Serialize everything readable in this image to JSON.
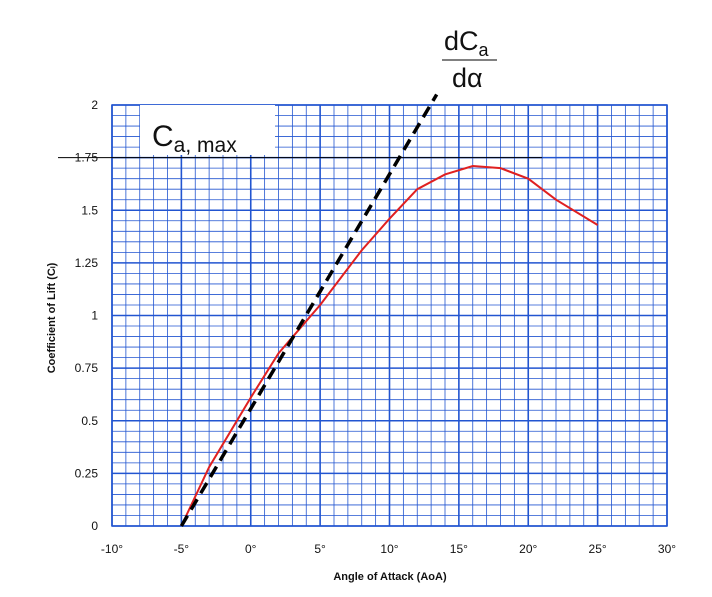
{
  "chart_data": {
    "type": "line",
    "xlabel": "Angle of Attack (AoA)",
    "ylabel": "Coefficient of Lift (Cₗ)",
    "xlim": [
      -10,
      30
    ],
    "ylim": [
      0,
      2
    ],
    "x_ticks": [
      "-10°",
      "-5°",
      "0°",
      "5°",
      "10°",
      "15°",
      "20°",
      "25°",
      "30°"
    ],
    "y_ticks": [
      "0",
      "0.25",
      "0.5",
      "0.75",
      "1",
      "1.25",
      "1.5",
      "1.75",
      "2"
    ],
    "grid": "on (minor 1° x 0.05)",
    "colors": {
      "grid": "#2255d0",
      "curve": "#e02020",
      "slope_line": "#000000",
      "ref_line": "#000000"
    },
    "series": [
      {
        "style": "solid red",
        "points": [
          [
            -5,
            0
          ],
          [
            -3,
            0.28
          ],
          [
            0,
            0.61
          ],
          [
            2,
            0.82
          ],
          [
            5,
            1.05
          ],
          [
            8,
            1.31
          ],
          [
            10,
            1.46
          ],
          [
            12,
            1.6
          ],
          [
            14,
            1.67
          ],
          [
            16,
            1.71
          ],
          [
            18,
            1.7
          ],
          [
            20,
            1.65
          ],
          [
            22,
            1.55
          ],
          [
            25,
            1.43
          ]
        ]
      },
      {
        "style": "dashed black (lift slope)",
        "points": [
          [
            -5,
            0
          ],
          [
            13.4,
            2.05
          ]
        ]
      }
    ],
    "reference_line": {
      "y": 1.75,
      "x_from": -14,
      "x_to": 21
    },
    "annotations": {
      "cmax_main": "C",
      "cmax_sub": "a, max",
      "slope_num_main": "dC",
      "slope_num_sub": "a",
      "slope_den": "dα"
    }
  }
}
